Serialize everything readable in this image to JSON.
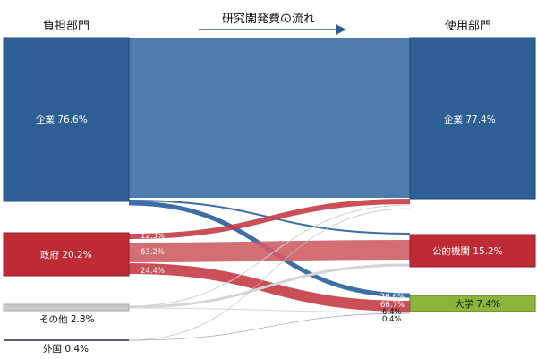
{
  "header": {
    "left": "負担部門",
    "center": "研究開発費の流れ",
    "right": "使用部門"
  },
  "colors": {
    "corporate": "#2e5f96",
    "government": "#bf2b35",
    "other": "#c8c8c8",
    "foreign": "#5a5a8a",
    "university": "#8cb43a",
    "flow_corporate": "#4f7db0"
  },
  "chart_data": {
    "type": "sankey",
    "title": "研究開発費の流れ",
    "sources": [
      {
        "name": "企業",
        "value": 76.6,
        "label": "企業 76.6%"
      },
      {
        "name": "政府",
        "value": 20.2,
        "label": "政府 20.2%"
      },
      {
        "name": "その他",
        "value": 2.8,
        "label": "その他 2.8%"
      },
      {
        "name": "外国",
        "value": 0.4,
        "label": "外国 0.4%"
      }
    ],
    "targets": [
      {
        "name": "企業",
        "value": 77.4,
        "label": "企業 77.4%"
      },
      {
        "name": "公的機関",
        "value": 15.2,
        "label": "公的機関 15.2%"
      },
      {
        "name": "大学",
        "value": 7.4,
        "label": "大学 7.4%"
      }
    ],
    "flow_labels": [
      {
        "source": "政府",
        "target": "企業",
        "label": "12.3%"
      },
      {
        "source": "政府",
        "target": "公的機関",
        "label": "63.2%"
      },
      {
        "source": "政府",
        "target": "大学",
        "label": "24.4%"
      },
      {
        "target": "大学",
        "label": "26.6%"
      },
      {
        "target": "大学",
        "label": "66.7%"
      },
      {
        "target": "大学",
        "label": "6.4%"
      },
      {
        "target": "大学",
        "label": "0.4%"
      }
    ]
  }
}
